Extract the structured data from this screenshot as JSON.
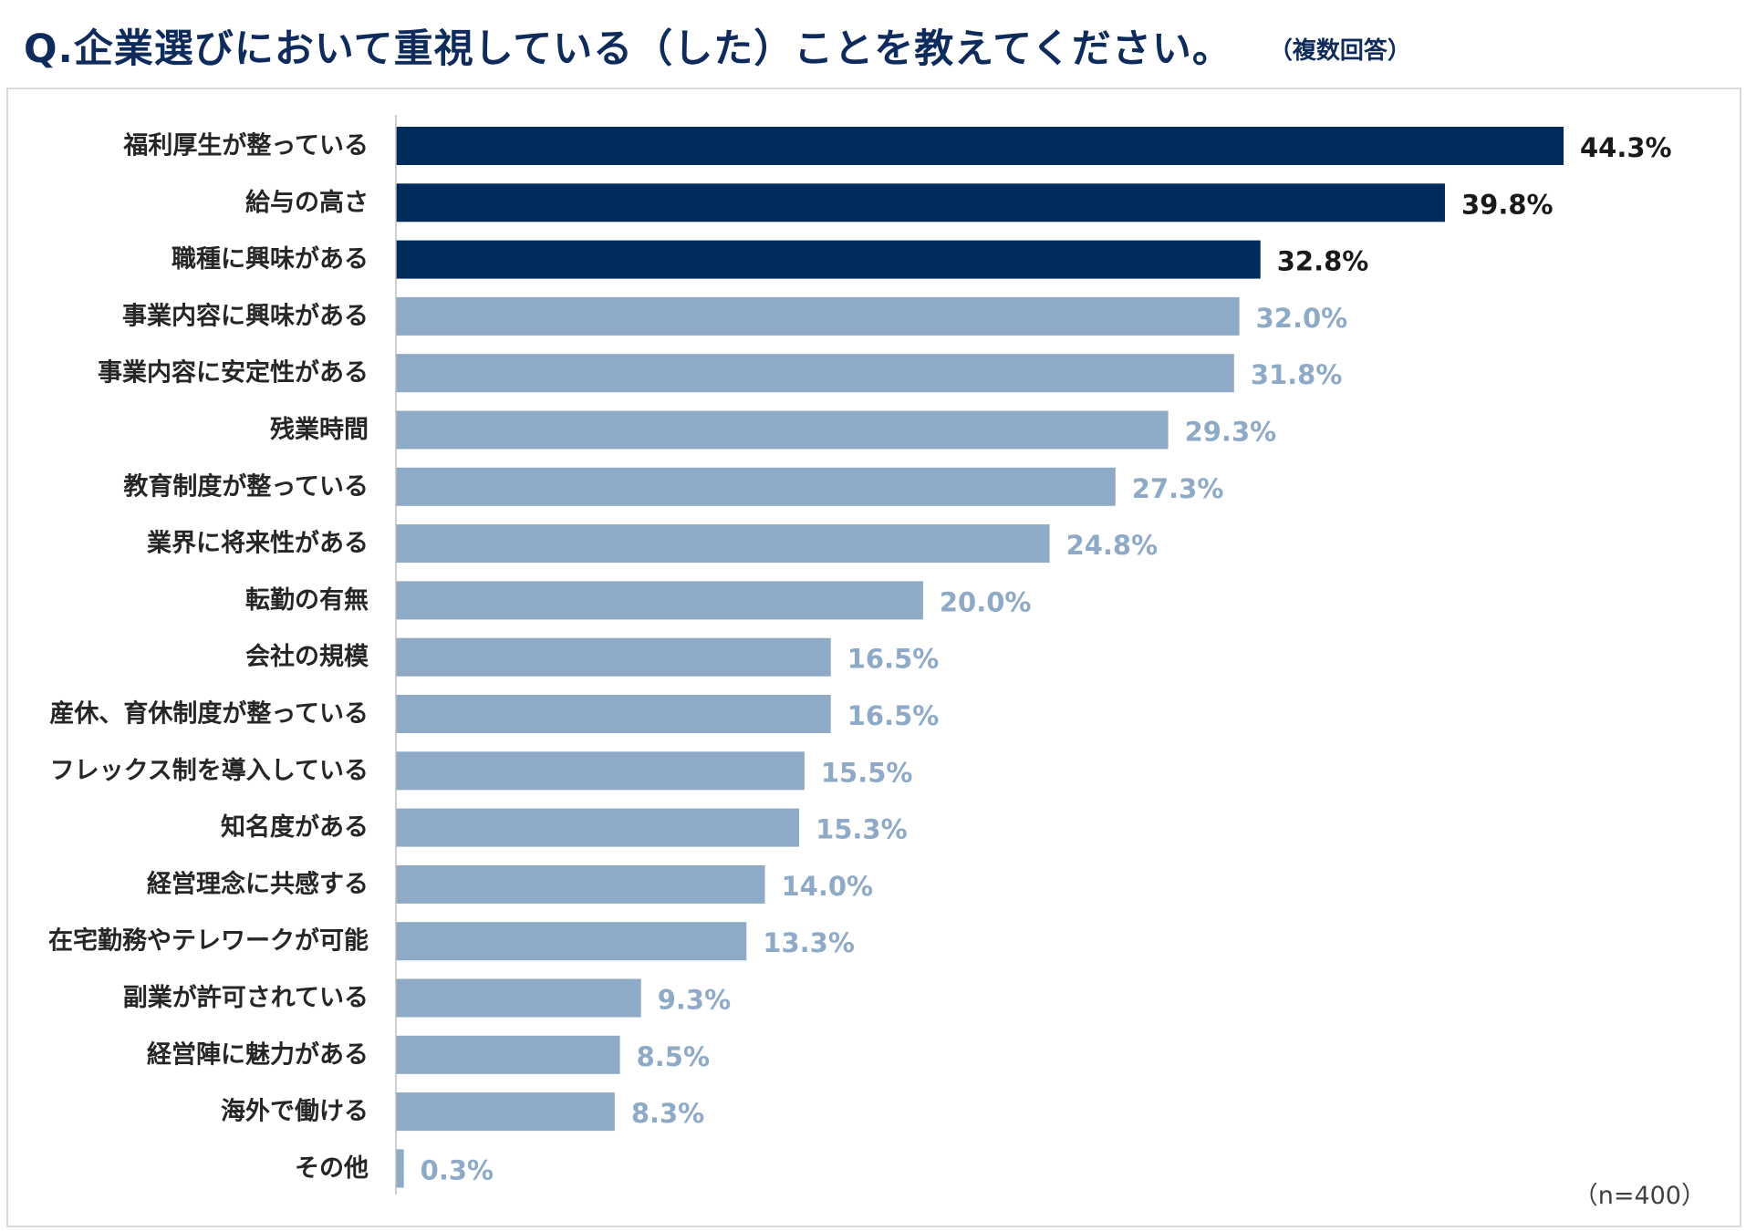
{
  "header": {
    "title": "Q.企業選びにおいて重視している（した）ことを教えてください。",
    "note": "（複数回答）"
  },
  "footer": {
    "sample": "（n=400）"
  },
  "colors": {
    "highlight_bar": "#002b5c",
    "normal_bar": "#8eaac6",
    "highlight_label": "#1a1a1a",
    "normal_label": "#8eaac6",
    "axis": "#bfbfbf"
  },
  "chart_data": {
    "type": "bar",
    "orientation": "horizontal",
    "title": "Q.企業選びにおいて重視している（した）ことを教えてください。",
    "xlabel": "",
    "ylabel": "",
    "xlim": [
      0,
      50
    ],
    "grid": false,
    "value_suffix": "%",
    "highlight_top": 3,
    "categories": [
      "福利厚生が整っている",
      "給与の高さ",
      "職種に興味がある",
      "事業内容に興味がある",
      "事業内容に安定性がある",
      "残業時間",
      "教育制度が整っている",
      "業界に将来性がある",
      "転勤の有無",
      "会社の規模",
      "産休、育休制度が整っている",
      "フレックス制を導入している",
      "知名度がある",
      "経営理念に共感する",
      "在宅勤務やテレワークが可能",
      "副業が許可されている",
      "経営陣に魅力がある",
      "海外で働ける",
      "その他"
    ],
    "values": [
      44.3,
      39.8,
      32.8,
      32.0,
      31.8,
      29.3,
      27.3,
      24.8,
      20.0,
      16.5,
      16.5,
      15.5,
      15.3,
      14.0,
      13.3,
      9.3,
      8.5,
      8.3,
      0.3
    ],
    "value_labels": [
      "44.3%",
      "39.8%",
      "32.8%",
      "32.0%",
      "31.8%",
      "29.3%",
      "27.3%",
      "24.8%",
      "20.0%",
      "16.5%",
      "16.5%",
      "15.5%",
      "15.3%",
      "14.0%",
      "13.3%",
      "9.3%",
      "8.5%",
      "8.3%",
      "0.3%"
    ]
  }
}
